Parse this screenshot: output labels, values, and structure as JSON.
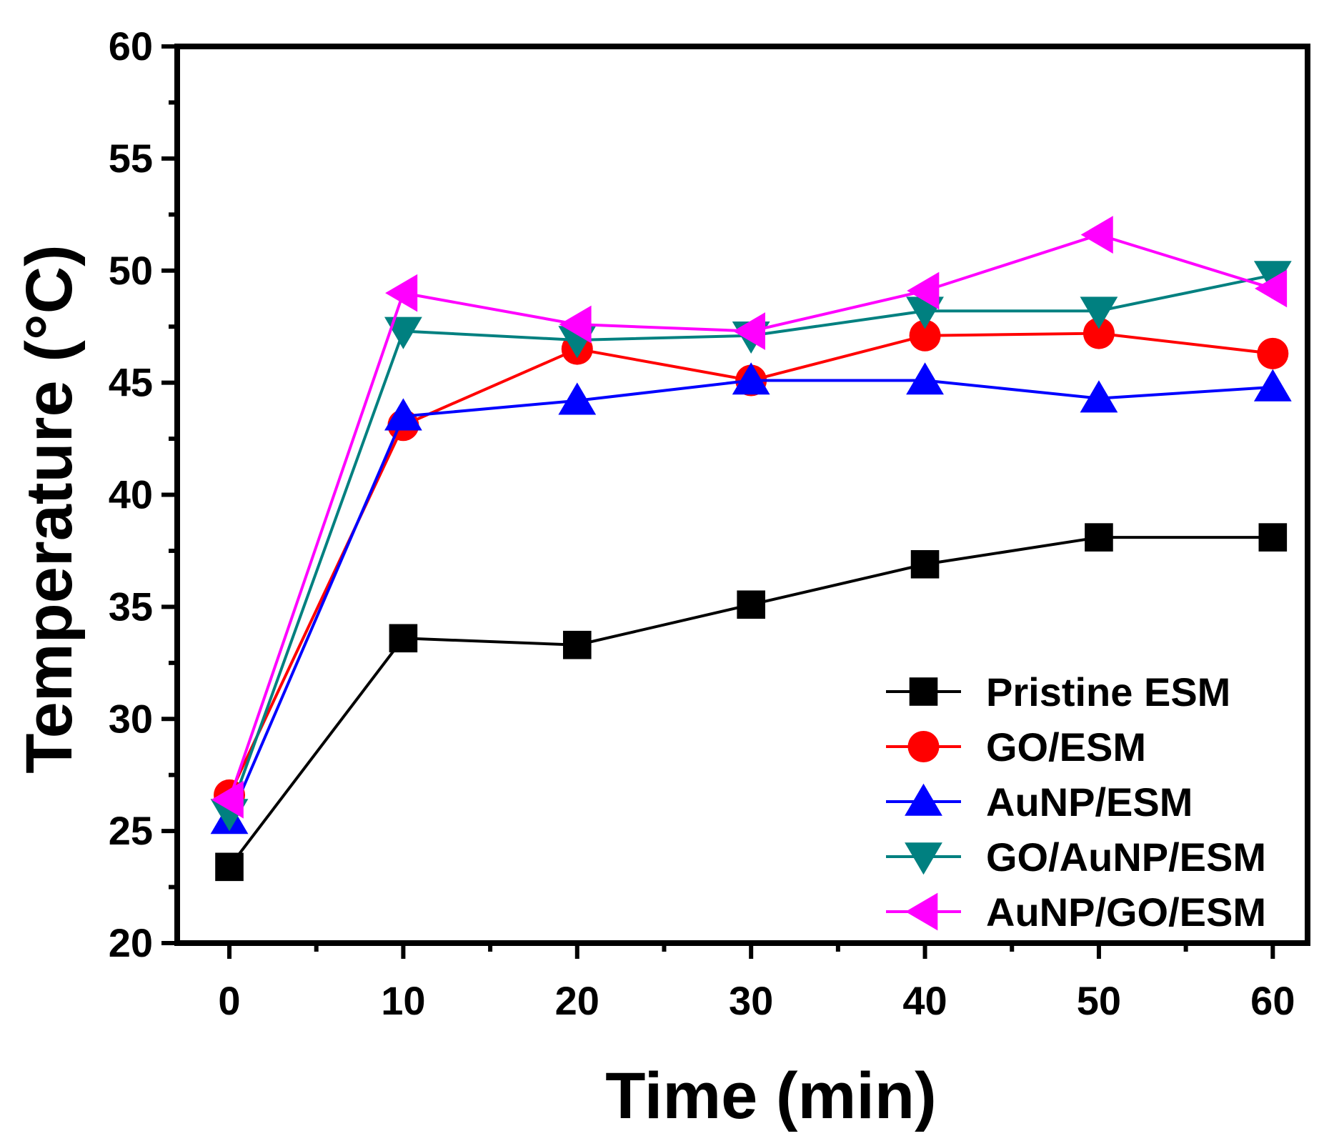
{
  "chart_data": {
    "type": "line",
    "title": "",
    "xlabel": "Time (min)",
    "ylabel": "Temperature (°C)",
    "xlim": [
      -3,
      62
    ],
    "ylim": [
      20,
      60
    ],
    "xticks": [
      0,
      10,
      20,
      30,
      40,
      50,
      60
    ],
    "yticks": [
      20,
      25,
      30,
      35,
      40,
      45,
      50,
      55,
      60
    ],
    "x": [
      0,
      10,
      20,
      30,
      40,
      50,
      60
    ],
    "legend_position": "bottom-right",
    "series": [
      {
        "name": "Pristine ESM",
        "color": "#000000",
        "marker": "square",
        "values": [
          23.4,
          33.6,
          33.3,
          35.1,
          36.9,
          38.1,
          38.1
        ]
      },
      {
        "name": "GO/ESM",
        "color": "#ff0000",
        "marker": "circle",
        "values": [
          26.6,
          43.1,
          46.5,
          45.1,
          47.1,
          47.2,
          46.3
        ]
      },
      {
        "name": "AuNP/ESM",
        "color": "#0000ff",
        "marker": "triangle-up",
        "values": [
          25.5,
          43.5,
          44.2,
          45.1,
          45.1,
          44.3,
          44.8
        ]
      },
      {
        "name": "GO/AuNP/ESM",
        "color": "#008080",
        "marker": "triangle-down",
        "values": [
          25.8,
          47.3,
          46.9,
          47.1,
          48.2,
          48.2,
          49.8
        ]
      },
      {
        "name": "AuNP/GO/ESM",
        "color": "#ff00ff",
        "marker": "triangle-left",
        "values": [
          26.4,
          49.0,
          47.6,
          47.3,
          49.1,
          51.6,
          49.2
        ]
      }
    ]
  }
}
